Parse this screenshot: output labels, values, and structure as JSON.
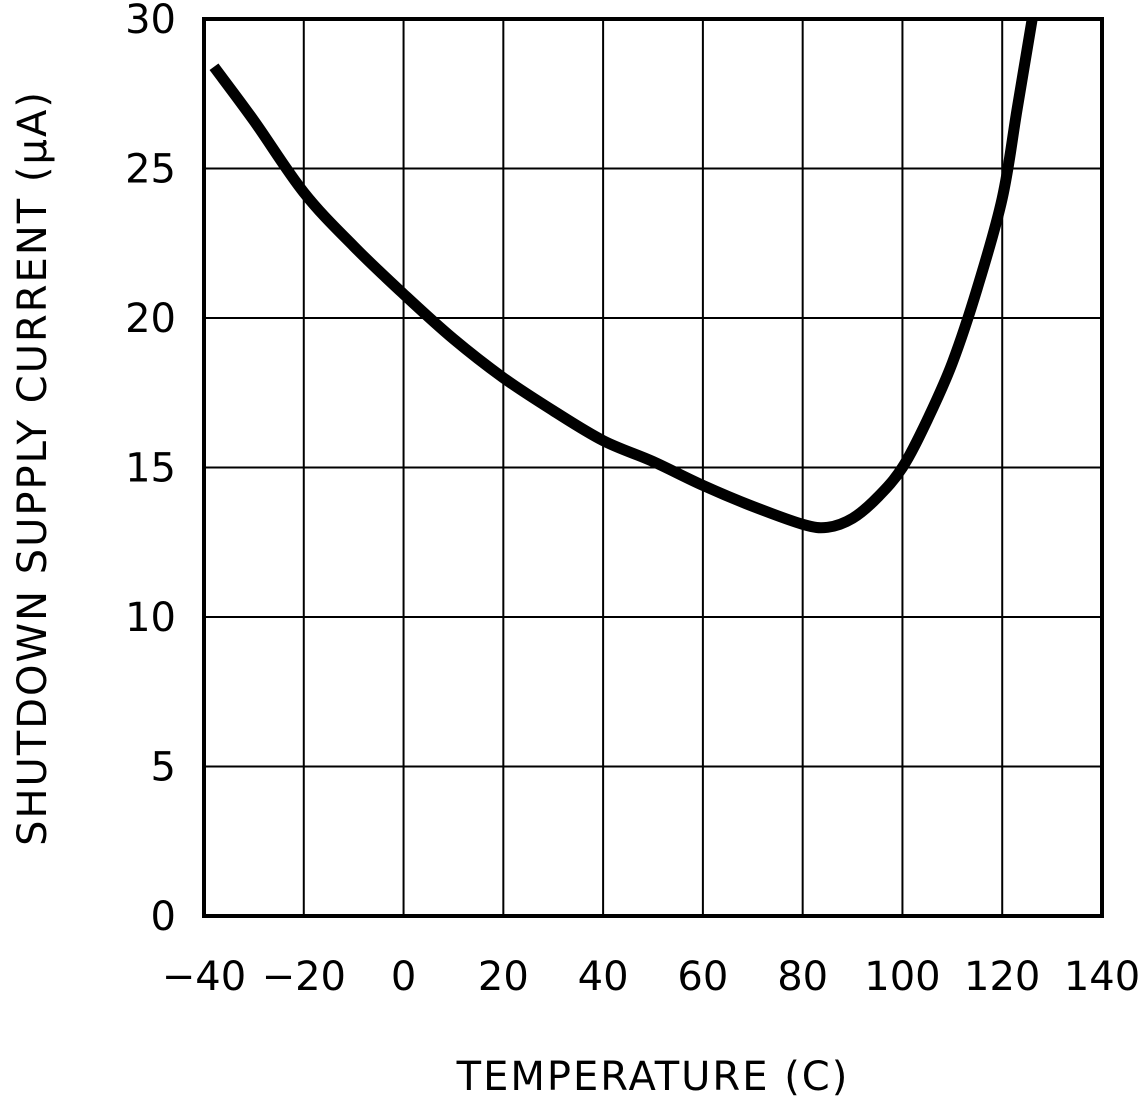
{
  "chart_data": {
    "type": "line",
    "title": "",
    "xlabel": "TEMPERATURE (C)",
    "ylabel": "SHUTDOWN SUPPLY CURRENT (µA)",
    "xlim": [
      -40,
      140
    ],
    "ylim": [
      0,
      30
    ],
    "x_ticks": [
      "-40",
      "-20",
      "0",
      "20",
      "40",
      "60",
      "80",
      "100",
      "120",
      "140"
    ],
    "y_ticks": [
      "0",
      "5",
      "10",
      "15",
      "20",
      "25",
      "30"
    ],
    "grid": true,
    "legend": null,
    "series": [
      {
        "name": "Shutdown Supply Current",
        "color": "#000000",
        "x": [
          -38,
          -30,
          -20,
          -10,
          0,
          10,
          20,
          30,
          40,
          50,
          60,
          70,
          80,
          85,
          90,
          95,
          100,
          105,
          110,
          115,
          120,
          123,
          126
        ],
        "y": [
          28.4,
          26.6,
          24.2,
          22.4,
          20.8,
          19.3,
          18.0,
          16.9,
          15.9,
          15.2,
          14.4,
          13.7,
          13.1,
          13.0,
          13.3,
          14.0,
          15.0,
          16.6,
          18.5,
          21.0,
          24.0,
          27.0,
          30.0
        ]
      }
    ]
  }
}
